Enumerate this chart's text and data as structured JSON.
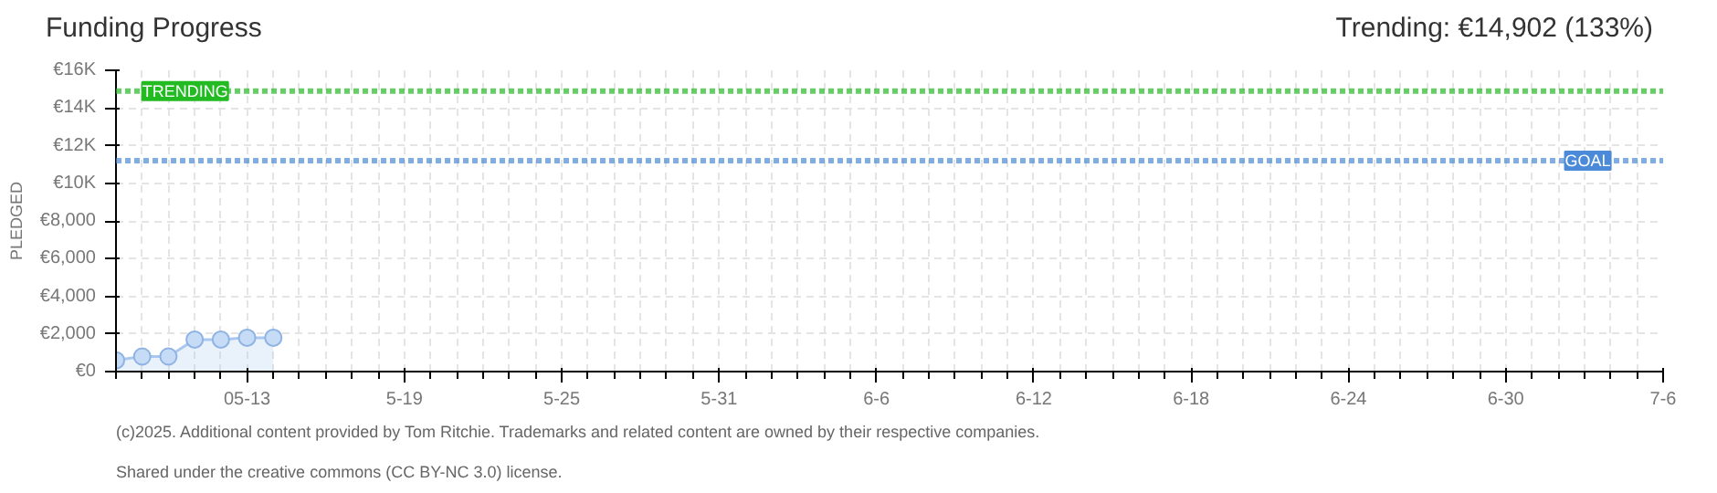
{
  "chart_data": {
    "type": "area",
    "title": "Funding Progress",
    "subtitle": "Trending: €14,902 (133%)",
    "ylabel": "PLEDGED",
    "x": [
      "2025-05-08",
      "2025-05-09",
      "2025-05-10",
      "2025-05-11",
      "2025-05-12",
      "2025-05-13",
      "2025-05-14"
    ],
    "series": [
      {
        "color": "#a9c8f0",
        "values": [
          600,
          800,
          800,
          1700,
          1700,
          1800,
          1800
        ]
      }
    ],
    "marker": "circle",
    "xlim": [
      "2025-05-08",
      "2025-07-06"
    ],
    "xticks": [
      {
        "value": "2025-05-13",
        "label": "05-13"
      },
      {
        "value": "2025-05-19",
        "label": "5-19"
      },
      {
        "value": "2025-05-25",
        "label": "5-25"
      },
      {
        "value": "2025-05-31",
        "label": "5-31"
      },
      {
        "value": "2025-06-06",
        "label": "6-6"
      },
      {
        "value": "2025-06-12",
        "label": "6-12"
      },
      {
        "value": "2025-06-18",
        "label": "6-18"
      },
      {
        "value": "2025-06-24",
        "label": "6-24"
      },
      {
        "value": "2025-06-30",
        "label": "6-30"
      },
      {
        "value": "2025-07-06",
        "label": "7-6"
      }
    ],
    "ylim": [
      0,
      16000
    ],
    "yticks": [
      {
        "value": 0,
        "label": "€0"
      },
      {
        "value": 2000,
        "label": "€2,000"
      },
      {
        "value": 4000,
        "label": "€4,000"
      },
      {
        "value": 6000,
        "label": "€6,000"
      },
      {
        "value": 8000,
        "label": "€8,000"
      },
      {
        "value": 10000,
        "label": "€10K"
      },
      {
        "value": 12000,
        "label": "€12K"
      },
      {
        "value": 14000,
        "label": "€14K"
      },
      {
        "value": 16000,
        "label": "€16K"
      }
    ],
    "ref_lines": [
      {
        "axis": "y",
        "value": 14902,
        "label": "TRENDING",
        "color": "#22bb22",
        "line_style": "dotted"
      },
      {
        "axis": "y",
        "value": 11200,
        "label": "GOAL",
        "color": "#4a8ad8",
        "line_style": "dotted"
      }
    ],
    "grid": true,
    "annotations": [
      "(c)2025. Additional content provided by Tom Ritchie. Trademarks and related content are owned by their respective companies.",
      "Shared under the creative commons (CC BY-NC 3.0) license."
    ]
  }
}
